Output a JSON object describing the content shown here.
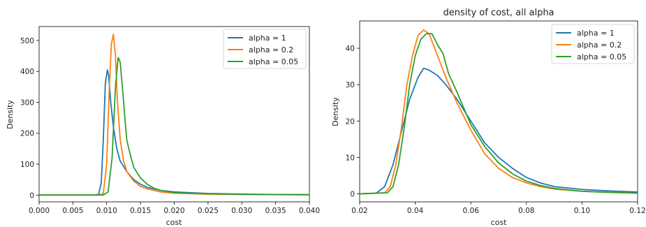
{
  "chart_data": [
    {
      "type": "line",
      "title": "",
      "xlabel": "cost",
      "ylabel": "Density",
      "xlim": [
        0.0,
        0.04
      ],
      "ylim": [
        -22,
        545
      ],
      "xticks": [
        "0.000",
        "0.005",
        "0.010",
        "0.015",
        "0.020",
        "0.025",
        "0.030",
        "0.035",
        "0.040"
      ],
      "yticks": [
        "0",
        "100",
        "200",
        "300",
        "400",
        "500"
      ],
      "legend_position": "top-right",
      "grid": false,
      "series": [
        {
          "name": "alpha = 1",
          "color": "#1f77b4",
          "points": [
            [
              0.0,
              0
            ],
            [
              0.008,
              0
            ],
            [
              0.0088,
              2
            ],
            [
              0.0092,
              40
            ],
            [
              0.0095,
              180
            ],
            [
              0.0098,
              360
            ],
            [
              0.0101,
              405
            ],
            [
              0.0103,
              385
            ],
            [
              0.0106,
              300
            ],
            [
              0.011,
              220
            ],
            [
              0.0115,
              150
            ],
            [
              0.012,
              110
            ],
            [
              0.013,
              75
            ],
            [
              0.014,
              50
            ],
            [
              0.015,
              35
            ],
            [
              0.016,
              25
            ],
            [
              0.018,
              15
            ],
            [
              0.02,
              10
            ],
            [
              0.025,
              5
            ],
            [
              0.03,
              3
            ],
            [
              0.035,
              2
            ],
            [
              0.04,
              1
            ]
          ]
        },
        {
          "name": "alpha = 0.2",
          "color": "#ff7f0e",
          "points": [
            [
              0.0,
              0
            ],
            [
              0.0088,
              0
            ],
            [
              0.0095,
              5
            ],
            [
              0.01,
              100
            ],
            [
              0.0104,
              350
            ],
            [
              0.0107,
              490
            ],
            [
              0.011,
              520
            ],
            [
              0.0113,
              450
            ],
            [
              0.0116,
              300
            ],
            [
              0.012,
              180
            ],
            [
              0.0125,
              110
            ],
            [
              0.013,
              75
            ],
            [
              0.014,
              45
            ],
            [
              0.015,
              28
            ],
            [
              0.016,
              20
            ],
            [
              0.018,
              10
            ],
            [
              0.02,
              6
            ],
            [
              0.025,
              3
            ],
            [
              0.03,
              2
            ],
            [
              0.04,
              1
            ]
          ]
        },
        {
          "name": "alpha = 0.05",
          "color": "#2ca02c",
          "points": [
            [
              0.0,
              0
            ],
            [
              0.0095,
              0
            ],
            [
              0.0102,
              10
            ],
            [
              0.0108,
              120
            ],
            [
              0.0113,
              350
            ],
            [
              0.0117,
              445
            ],
            [
              0.012,
              430
            ],
            [
              0.0124,
              330
            ],
            [
              0.0128,
              220
            ],
            [
              0.013,
              175
            ],
            [
              0.0135,
              130
            ],
            [
              0.014,
              90
            ],
            [
              0.015,
              55
            ],
            [
              0.016,
              35
            ],
            [
              0.017,
              22
            ],
            [
              0.018,
              15
            ],
            [
              0.02,
              8
            ],
            [
              0.025,
              4
            ],
            [
              0.03,
              2
            ],
            [
              0.04,
              1
            ]
          ]
        }
      ]
    },
    {
      "type": "line",
      "title": "density of cost, all alpha",
      "xlabel": "cost",
      "ylabel": "Density",
      "xlim": [
        0.02,
        0.12
      ],
      "ylim": [
        -2.2,
        47.5
      ],
      "xticks": [
        "0.02",
        "0.04",
        "0.06",
        "0.08",
        "0.10",
        "0.12"
      ],
      "yticks": [
        "0",
        "10",
        "20",
        "30",
        "40"
      ],
      "legend_position": "top-right",
      "grid": false,
      "series": [
        {
          "name": "alpha = 1",
          "color": "#1f77b4",
          "points": [
            [
              0.02,
              0
            ],
            [
              0.026,
              0.2
            ],
            [
              0.029,
              2
            ],
            [
              0.032,
              8
            ],
            [
              0.035,
              17
            ],
            [
              0.038,
              26
            ],
            [
              0.041,
              32
            ],
            [
              0.043,
              34.5
            ],
            [
              0.045,
              34
            ],
            [
              0.048,
              32.5
            ],
            [
              0.051,
              30
            ],
            [
              0.055,
              26
            ],
            [
              0.06,
              20
            ],
            [
              0.065,
              14
            ],
            [
              0.07,
              10
            ],
            [
              0.075,
              7
            ],
            [
              0.08,
              4.5
            ],
            [
              0.085,
              3
            ],
            [
              0.09,
              2
            ],
            [
              0.1,
              1.2
            ],
            [
              0.11,
              0.8
            ],
            [
              0.12,
              0.5
            ]
          ]
        },
        {
          "name": "alpha = 0.2",
          "color": "#ff7f0e",
          "points": [
            [
              0.02,
              0
            ],
            [
              0.029,
              0.3
            ],
            [
              0.031,
              2
            ],
            [
              0.033,
              8
            ],
            [
              0.035,
              18
            ],
            [
              0.037,
              30
            ],
            [
              0.039,
              38
            ],
            [
              0.041,
              43.5
            ],
            [
              0.043,
              45
            ],
            [
              0.045,
              44
            ],
            [
              0.048,
              38
            ],
            [
              0.051,
              32
            ],
            [
              0.055,
              25
            ],
            [
              0.06,
              17.5
            ],
            [
              0.065,
              11
            ],
            [
              0.07,
              7
            ],
            [
              0.075,
              4.5
            ],
            [
              0.08,
              3
            ],
            [
              0.085,
              2
            ],
            [
              0.09,
              1.3
            ],
            [
              0.1,
              0.7
            ],
            [
              0.11,
              0.4
            ],
            [
              0.12,
              0.2
            ]
          ]
        },
        {
          "name": "alpha = 0.05",
          "color": "#2ca02c",
          "points": [
            [
              0.02,
              0
            ],
            [
              0.03,
              0.3
            ],
            [
              0.032,
              2
            ],
            [
              0.034,
              8
            ],
            [
              0.036,
              18
            ],
            [
              0.038,
              30
            ],
            [
              0.04,
              38
            ],
            [
              0.042,
              42.5
            ],
            [
              0.044,
              44
            ],
            [
              0.046,
              44
            ],
            [
              0.048,
              41
            ],
            [
              0.05,
              38.5
            ],
            [
              0.052,
              33
            ],
            [
              0.055,
              28
            ],
            [
              0.06,
              19
            ],
            [
              0.065,
              13
            ],
            [
              0.07,
              8.5
            ],
            [
              0.075,
              5.5
            ],
            [
              0.08,
              3.5
            ],
            [
              0.085,
              2.3
            ],
            [
              0.09,
              1.5
            ],
            [
              0.1,
              0.7
            ],
            [
              0.11,
              0.4
            ],
            [
              0.12,
              0.2
            ]
          ]
        }
      ]
    }
  ]
}
